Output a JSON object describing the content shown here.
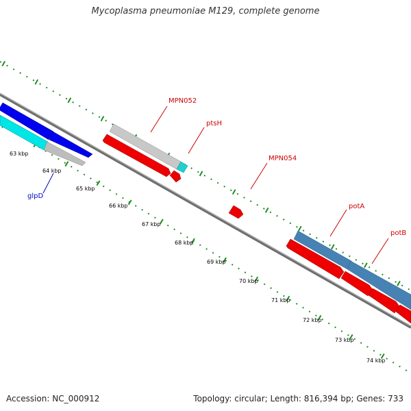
{
  "title": "Mycoplasma pneumoniae M129, complete genome",
  "accession": "Accession: NC_000912",
  "summary": "Topology: circular; Length: 816,394 bp; Genes: 733",
  "colors": {
    "backbone": "#808080",
    "ticks": "#228b22",
    "forward_gene": "#0000ff",
    "forward_cds": "#00ffff",
    "hypothetical": "#c0c0c0",
    "reverse_cds": "#ff0000",
    "operon": "#4682b4",
    "label_red": "#cc0000",
    "label_blue": "#0000cc"
  },
  "scale_labels": [
    "63 kbp",
    "64 kbp",
    "65 kbp",
    "66 kbp",
    "67 kbp",
    "68 kbp",
    "69 kbp",
    "70 kbp",
    "71 kbp",
    "72 kbp",
    "73 kbp",
    "74 kbp"
  ],
  "gene_labels": [
    {
      "text": "MPN052",
      "color": "label_red"
    },
    {
      "text": "ptsH",
      "color": "label_red"
    },
    {
      "text": "MPN054",
      "color": "label_red"
    },
    {
      "text": "potA",
      "color": "label_red"
    },
    {
      "text": "potB",
      "color": "label_red"
    },
    {
      "text": "glpD",
      "color": "label_blue"
    }
  ]
}
